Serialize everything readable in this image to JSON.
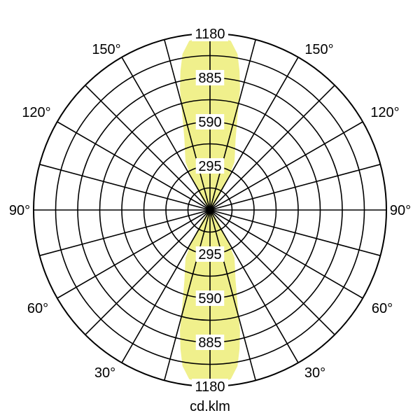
{
  "chart_data": {
    "type": "polar",
    "unit_label": "cd.klm",
    "r_max": 1180,
    "ring_count": 8,
    "ring_labels": [
      "295",
      "590",
      "885",
      "1180"
    ],
    "ring_label_values": [
      295,
      590,
      885,
      1180
    ],
    "angular_grid_step_deg": 15,
    "angle_labels_left": [
      "150°",
      "120°",
      "90°",
      "60°",
      "30°"
    ],
    "angle_labels_right": [
      "150°",
      "120°",
      "90°",
      "60°",
      "30°"
    ],
    "angle_label_values": [
      150,
      120,
      90,
      60,
      30
    ],
    "grid": true,
    "fill_color": "#f0f08c",
    "line_color": "#000000",
    "series": [
      {
        "angles_deg": [
          0,
          5,
          7,
          10,
          12,
          14,
          17,
          20,
          24,
          27,
          30,
          35,
          40,
          45
        ],
        "values": [
          1150,
          1148,
          1140,
          1060,
          950,
          830,
          620,
          500,
          410,
          360,
          250,
          100,
          30,
          0
        ]
      }
    ]
  }
}
